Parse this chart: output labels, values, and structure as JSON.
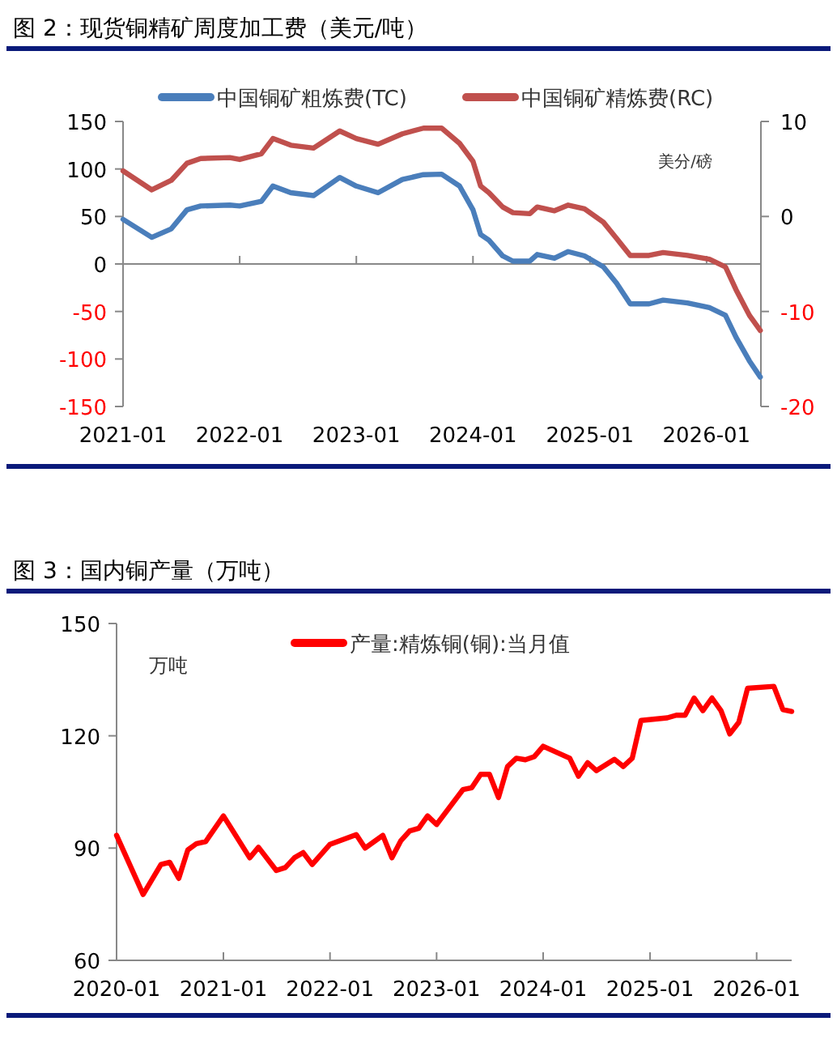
{
  "chart_data": [
    {
      "type": "line",
      "title": "图 2：现货铜精矿周度加工费（美元/吨）",
      "y2label": "美分/磅",
      "legend": "top",
      "xlim": [
        "2021-01-01",
        "2026-06-20"
      ],
      "xticks": [
        "2021-01",
        "2022-01",
        "2023-01",
        "2024-01",
        "2025-01",
        "2026-01"
      ],
      "ylim": [
        -150,
        150
      ],
      "yticks": [
        -150,
        -100,
        -50,
        0,
        50,
        100,
        150
      ],
      "y2lim": [
        -20,
        10
      ],
      "y2ticks": [
        -20,
        -10,
        0,
        10
      ],
      "series": [
        {
          "name": "中国铜矿粗炼费(TC)",
          "color": "#4a7ebb",
          "x": [
            "2021-01-01",
            "2021-04-01",
            "2021-06-01",
            "2021-07-20",
            "2021-09-01",
            "2021-12-01",
            "2022-01-01",
            "2022-03-10",
            "2022-04-15",
            "2022-06-10",
            "2022-08-20",
            "2022-11-10",
            "2023-01-01",
            "2023-03-10",
            "2023-05-25",
            "2023-07-30",
            "2023-09-25",
            "2023-11-20",
            "2024-01-01",
            "2024-01-25",
            "2024-02-20",
            "2024-04-03",
            "2024-05-05",
            "2024-06-27",
            "2024-07-20",
            "2024-09-12",
            "2024-10-25",
            "2024-12-15",
            "2025-02-12",
            "2025-03-25",
            "2025-05-07",
            "2025-07-05",
            "2025-08-18",
            "2025-11-02",
            "2026-01-10",
            "2026-03-01",
            "2026-04-03",
            "2026-05-15",
            "2026-06-18"
          ],
          "values": [
            47,
            28,
            37,
            57,
            61,
            62,
            61,
            66,
            82,
            75,
            72,
            91,
            82,
            75,
            89,
            94,
            94.5,
            82,
            57,
            31,
            25,
            8.5,
            3,
            3,
            10,
            6,
            13,
            8.5,
            -3,
            -20,
            -42,
            -42,
            -38,
            -41,
            -46,
            -54,
            -77,
            -102,
            -119
          ]
        },
        {
          "name": "中国铜矿精炼费(RC)",
          "color": "#c0504d",
          "axis": "y2",
          "x": [
            "2021-01-01",
            "2021-04-01",
            "2021-06-01",
            "2021-07-20",
            "2021-09-01",
            "2021-12-01",
            "2022-01-01",
            "2022-03-10",
            "2022-04-15",
            "2022-06-10",
            "2022-08-20",
            "2022-11-10",
            "2023-01-01",
            "2023-03-10",
            "2023-05-25",
            "2023-07-30",
            "2023-09-25",
            "2023-11-20",
            "2024-01-01",
            "2024-01-25",
            "2024-02-20",
            "2024-04-03",
            "2024-05-05",
            "2024-06-27",
            "2024-07-20",
            "2024-09-12",
            "2024-10-25",
            "2024-12-15",
            "2025-02-12",
            "2025-03-25",
            "2025-05-07",
            "2025-07-05",
            "2025-08-18",
            "2025-11-02",
            "2026-01-10",
            "2026-03-01",
            "2026-04-03",
            "2026-05-15",
            "2026-06-18"
          ],
          "values": [
            4.8,
            2.8,
            3.8,
            5.6,
            6.1,
            6.2,
            6.0,
            6.6,
            8.2,
            7.5,
            7.2,
            9.0,
            8.2,
            7.6,
            8.7,
            9.3,
            9.3,
            7.7,
            5.8,
            3.2,
            2.5,
            1.0,
            0.4,
            0.3,
            1.0,
            0.6,
            1.2,
            0.8,
            -0.6,
            -2.3,
            -4.1,
            -4.1,
            -3.8,
            -4.1,
            -4.5,
            -5.3,
            -7.7,
            -10.4,
            -12.0
          ]
        }
      ]
    },
    {
      "type": "line",
      "title": "图 3：国内铜产量（万吨）",
      "ylabel": "万吨",
      "legend": "top right",
      "xlim": [
        "2020-01",
        "2026-05"
      ],
      "xticks": [
        "2020-01",
        "2021-01",
        "2022-01",
        "2023-01",
        "2024-01",
        "2025-01",
        "2026-01"
      ],
      "ylim": [
        60,
        150
      ],
      "yticks": [
        60,
        90,
        120,
        150
      ],
      "series": [
        {
          "name": "产量:精炼铜(铜):当月值",
          "color": "#ff0000",
          "x": [
            "2020-01",
            "2020-04",
            "2020-06",
            "2020-07",
            "2020-08",
            "2020-09",
            "2020-10",
            "2020-11",
            "2021-01",
            "2021-04",
            "2021-05",
            "2021-07",
            "2021-08",
            "2021-09",
            "2021-10",
            "2021-11",
            "2022-01",
            "2022-04",
            "2022-05",
            "2022-07",
            "2022-08",
            "2022-09",
            "2022-10",
            "2022-11",
            "2022-12",
            "2023-01",
            "2023-04",
            "2023-05",
            "2023-06",
            "2023-07",
            "2023-08",
            "2023-09",
            "2023-10",
            "2023-11",
            "2023-12",
            "2024-01",
            "2024-04",
            "2024-05",
            "2024-06",
            "2024-07",
            "2024-09",
            "2024-10",
            "2024-11",
            "2024-12",
            "2025-03",
            "2025-04",
            "2025-05",
            "2025-06",
            "2025-07",
            "2025-08",
            "2025-09",
            "2025-10",
            "2025-11",
            "2025-12",
            "2026-03",
            "2026-04",
            "2026-05"
          ],
          "values": [
            93.4,
            77.6,
            85.6,
            86.2,
            81.9,
            89.5,
            91.2,
            91.7,
            98.6,
            87.4,
            90.2,
            84.0,
            84.8,
            87.4,
            88.8,
            85.6,
            91.0,
            93.6,
            90.0,
            93.4,
            87.4,
            92.0,
            94.6,
            95.3,
            98.6,
            96.3,
            105.6,
            106.1,
            109.7,
            109.7,
            103.5,
            111.8,
            114.0,
            113.6,
            114.4,
            117.2,
            114.0,
            109.2,
            112.8,
            110.7,
            113.7,
            111.8,
            114.0,
            124.1,
            124.8,
            125.5,
            125.5,
            130.1,
            126.7,
            130.1,
            126.7,
            120.5,
            123.6,
            132.7,
            133.2,
            127.0,
            126.5
          ]
        }
      ]
    }
  ]
}
